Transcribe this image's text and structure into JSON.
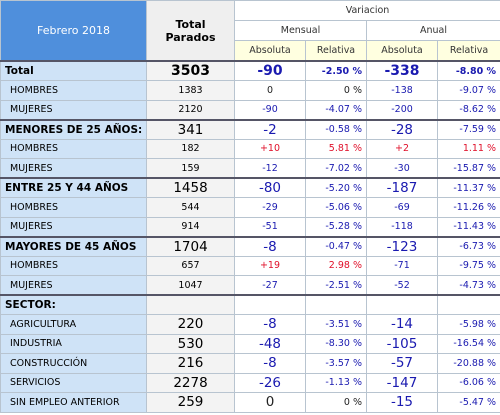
{
  "header": {
    "period": "Febrero 2018",
    "total": "Total Parados",
    "variation": "Variacion",
    "monthly": "Mensual",
    "annual": "Anual",
    "absolute_monthly": "Absoluta",
    "relative_monthly": "Relativa",
    "absolute_annual": "Absoluta",
    "relative_annual": "Relativa"
  },
  "table": {
    "rows": [
      [
        "Total",
        "3503",
        "-90",
        "-2.50 %",
        "-338",
        "-8.80 %"
      ],
      [
        "HOMBRES",
        "1383",
        "0",
        "0 %",
        "-138",
        "-9.07 %"
      ],
      [
        "MUJERES",
        "2120",
        "-90",
        "-4.07 %",
        "-200",
        "-8.62 %"
      ],
      [
        "MENORES DE 25 AÑOS:",
        "341",
        "-2",
        "-0.58 %",
        "-28",
        "-7.59 %"
      ],
      [
        "HOMBRES",
        "182",
        "+10",
        "5.81 %",
        "+2",
        "1.11 %"
      ],
      [
        "MUJERES",
        "159",
        "-12",
        "-7.02 %",
        "-30",
        "-15.87 %"
      ],
      [
        "ENTRE 25 Y 44 AÑOS",
        "1458",
        "-80",
        "-5.20 %",
        "-187",
        "-11.37 %"
      ],
      [
        "HOMBRES",
        "544",
        "-29",
        "-5.06 %",
        "-69",
        "-11.26 %"
      ],
      [
        "MUJERES",
        "914",
        "-51",
        "-5.28 %",
        "-118",
        "-11.43 %"
      ],
      [
        "MAYORES DE 45 AÑOS",
        "1704",
        "-8",
        "-0.47 %",
        "-123",
        "-6.73 %"
      ],
      [
        "HOMBRES",
        "657",
        "+19",
        "2.98 %",
        "-71",
        "-9.75 %"
      ],
      [
        "MUJERES",
        "1047",
        "-27",
        "-2.51 %",
        "-52",
        "-4.73 %"
      ],
      [
        "SECTOR:"
      ],
      [
        "AGRICULTURA",
        "220",
        "-8",
        "-3.51 %",
        "-14",
        "-5.98 %"
      ],
      [
        "INDUSTRIA",
        "530",
        "-48",
        "-8.30 %",
        "-105",
        "-16.54 %"
      ],
      [
        "CONSTRUCCIÓN",
        "216",
        "-8",
        "-3.57 %",
        "-57",
        "-20.88 %"
      ],
      [
        "SERVICIOS",
        "2278",
        "-26",
        "-1.13 %",
        "-147",
        "-6.06 %"
      ],
      [
        "SIN EMPLEO ANTERIOR",
        "259",
        "0",
        "0 %",
        "-15",
        "-5.47 %"
      ]
    ]
  }
}
